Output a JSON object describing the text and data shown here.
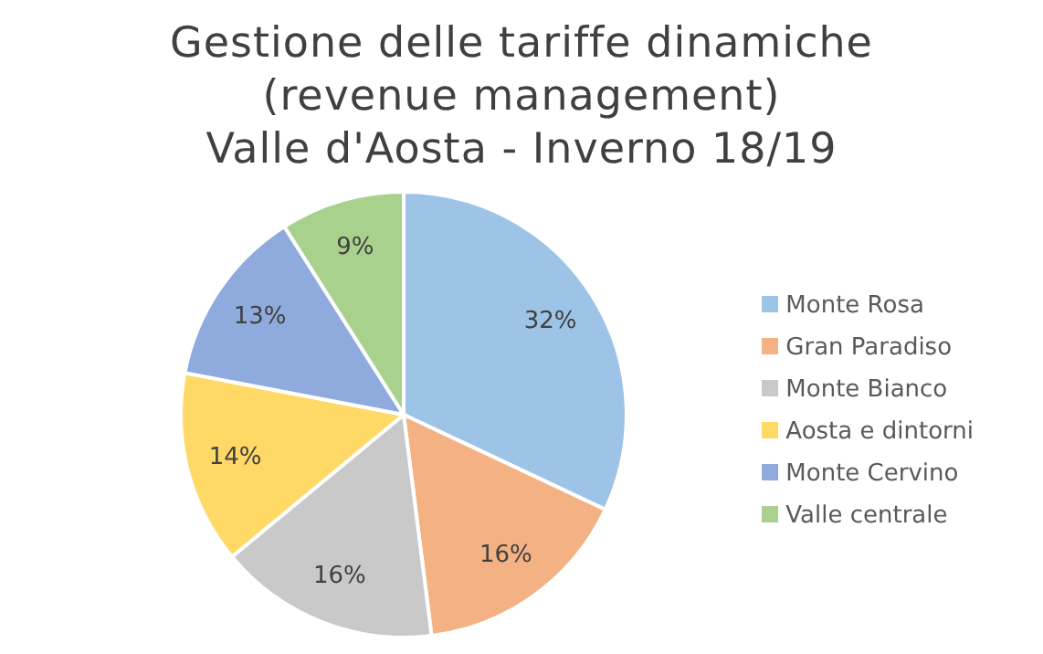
{
  "chart_data": {
    "type": "pie",
    "title": "Gestione delle tariffe dinamiche\n(revenue management)\nValle d'Aosta - Inverno 18/19",
    "categories": [
      "Monte Rosa",
      "Gran Paradiso",
      "Monte Bianco",
      "Aosta e dintorni",
      "Monte Cervino",
      "Valle centrale"
    ],
    "values": [
      32,
      16,
      16,
      14,
      13,
      9
    ],
    "colors": [
      "#9dc3e6",
      "#f4b183",
      "#c9c9c9",
      "#ffd966",
      "#8faadc",
      "#a9d18e"
    ],
    "value_labels": [
      "32%",
      "16%",
      "16%",
      "14%",
      "13%",
      "9%"
    ],
    "legend": "right"
  }
}
